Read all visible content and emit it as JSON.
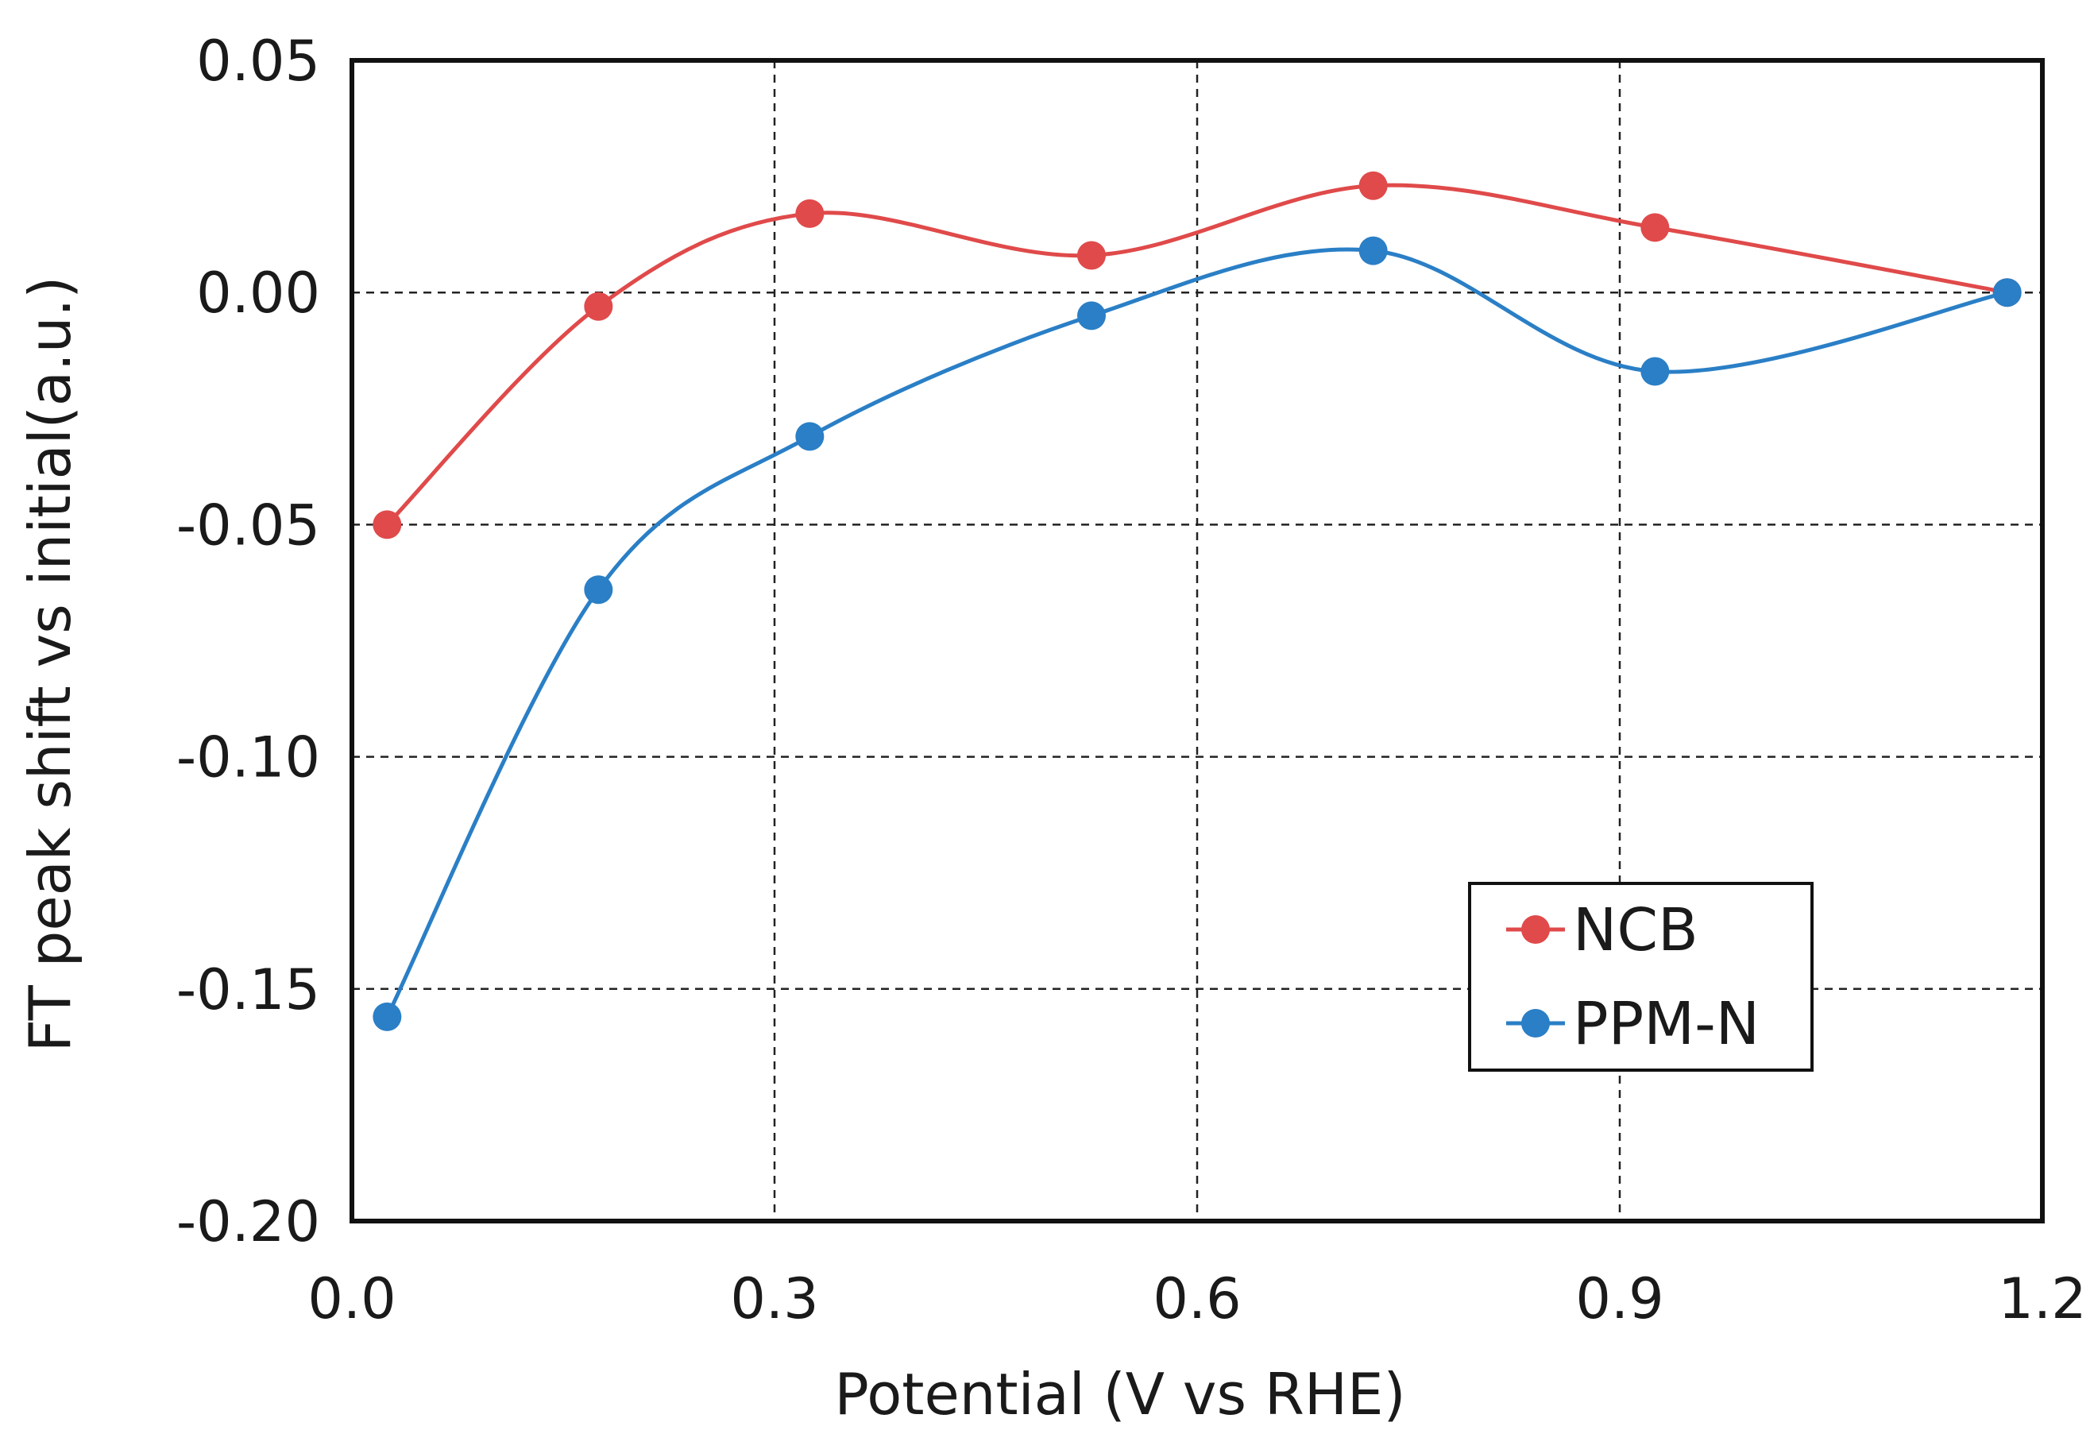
{
  "chart_data": {
    "type": "line",
    "title": "",
    "xlabel": "Potential (V vs RHE)",
    "ylabel": "FT peak shift vs initial(a.u.)",
    "xlim": [
      0.0,
      1.2
    ],
    "ylim": [
      -0.2,
      0.05
    ],
    "xticks": [
      0.0,
      0.3,
      0.6,
      0.9,
      1.2
    ],
    "xtick_labels": [
      "0.0",
      "0.3",
      "0.6",
      "0.9",
      "1.2"
    ],
    "yticks": [
      0.05,
      0.0,
      -0.05,
      -0.1,
      -0.15,
      -0.2
    ],
    "ytick_labels": [
      "0.05",
      "0.00",
      "-0.05",
      "-0.10",
      "-0.15",
      "-0.20"
    ],
    "grid": true,
    "legend_position": "bottom-right",
    "series": [
      {
        "name": "NCB",
        "color": "#e04a4a",
        "x": [
          0.025,
          0.175,
          0.325,
          0.525,
          0.725,
          0.925,
          1.175
        ],
        "y": [
          -0.05,
          -0.003,
          0.017,
          0.008,
          0.023,
          0.014,
          0.0
        ]
      },
      {
        "name": "PPM-N",
        "color": "#2a7fc6",
        "x": [
          0.025,
          0.175,
          0.325,
          0.525,
          0.725,
          0.925,
          1.175
        ],
        "y": [
          -0.156,
          -0.064,
          -0.031,
          -0.005,
          0.009,
          -0.017,
          0.0
        ]
      }
    ]
  }
}
